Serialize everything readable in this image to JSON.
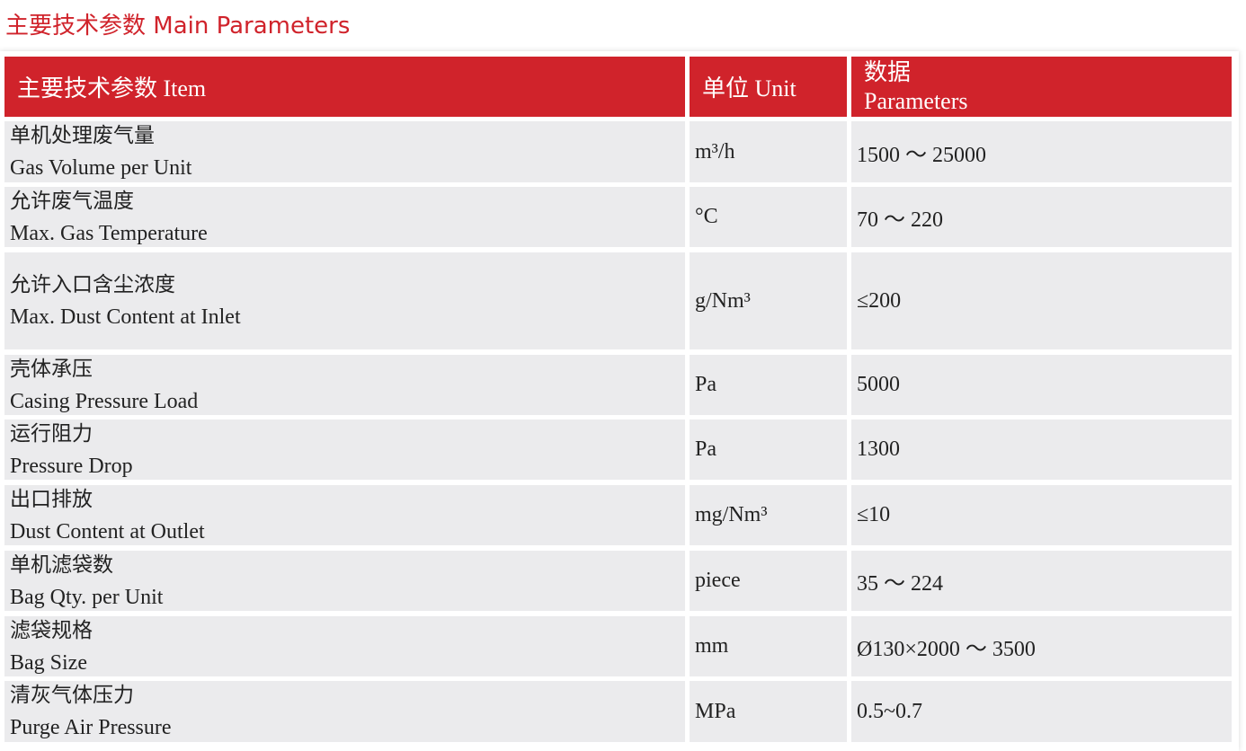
{
  "title": "主要技术参数 Main Parameters",
  "header": {
    "item": "主要技术参数 Item",
    "unit": "单位 Unit",
    "param_zh": "数据",
    "param_en": "Parameters"
  },
  "colors": {
    "accent": "#d0232b",
    "row_bg": "#ebebed"
  },
  "rows": [
    {
      "zh": "单机处理废气量",
      "en": "Gas Volume per Unit",
      "unit": "m³/h",
      "value": "1500 ～ 25000"
    },
    {
      "zh": "允许废气温度",
      "en": "Max. Gas Temperature",
      "unit": "°C",
      "value": "70 ～ 220"
    },
    {
      "zh": "允许入口含尘浓度",
      "en": "Max. Dust Content at Inlet",
      "unit": "g/Nm³",
      "value": "≤200"
    },
    {
      "zh": "壳体承压",
      "en": "Casing Pressure Load",
      "unit": "Pa",
      "value": "5000"
    },
    {
      "zh": "运行阻力",
      "en": "Pressure Drop",
      "unit": "Pa",
      "value": "1300"
    },
    {
      "zh": "出口排放",
      "en": "Dust Content at Outlet",
      "unit": "mg/Nm³",
      "value": "≤10"
    },
    {
      "zh": "单机滤袋数",
      "en": "Bag Qty. per Unit",
      "unit": "piece",
      "value": "35 ～ 224"
    },
    {
      "zh": "滤袋规格",
      "en": "Bag Size",
      "unit": "mm",
      "value": "Ø130×2000 ～ 3500"
    },
    {
      "zh": "清灰气体压力",
      "en": "Purge Air Pressure",
      "unit": "MPa",
      "value": "0.5~0.7"
    }
  ]
}
